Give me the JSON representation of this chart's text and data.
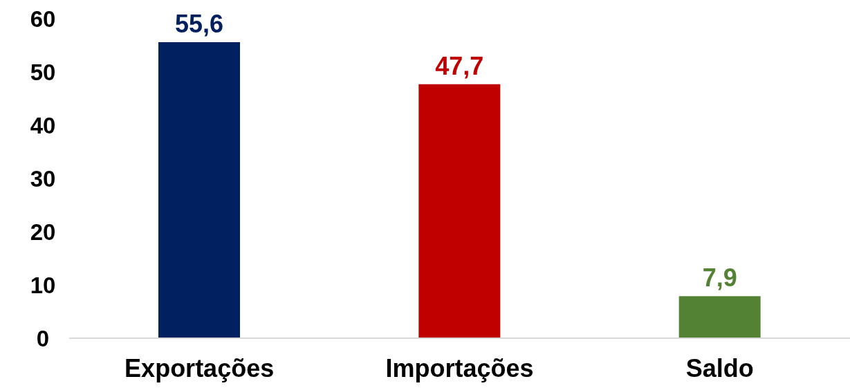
{
  "chart_data": {
    "type": "bar",
    "categories": [
      "Exportações",
      "Importações",
      "Saldo"
    ],
    "values": [
      55.6,
      47.7,
      7.9
    ],
    "colors": [
      "#002060",
      "#c00000",
      "#548235"
    ],
    "value_labels": [
      "55,6",
      "47,7",
      "7,9"
    ],
    "ylim": [
      0,
      60
    ],
    "yticks": [
      0,
      10,
      20,
      30,
      40,
      50,
      60
    ],
    "grid": false
  }
}
